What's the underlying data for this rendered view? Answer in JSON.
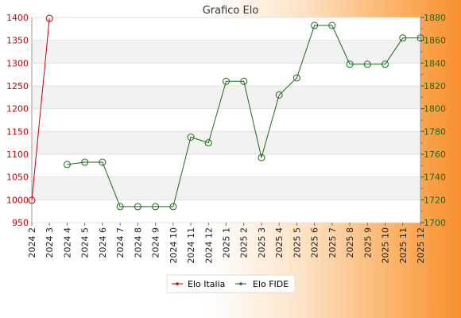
{
  "chart_data": {
    "type": "line",
    "title": "Grafico Elo",
    "categories": [
      "2024 2",
      "2024 3",
      "2024 4",
      "2024 5",
      "2024 6",
      "2024 7",
      "2024 8",
      "2024 9",
      "2024 10",
      "2024 11",
      "2024 12",
      "2025 1",
      "2025 2",
      "2025 3",
      "2025 4",
      "2025 5",
      "2025 6",
      "2025 7",
      "2025 8",
      "2025 9",
      "2025 10",
      "2025 11",
      "2025 12"
    ],
    "y_left": {
      "min": 950,
      "max": 1400,
      "ticks": [
        950,
        1000,
        1050,
        1100,
        1150,
        1200,
        1250,
        1300,
        1350,
        1400
      ]
    },
    "y_right": {
      "min": 1700,
      "max": 1880,
      "ticks": [
        1700,
        1720,
        1740,
        1760,
        1780,
        1800,
        1820,
        1840,
        1860,
        1880
      ]
    },
    "grid": true,
    "legend_position": "bottom",
    "series": [
      {
        "name": "Elo Italia",
        "axis": "left",
        "color": "#cc0000",
        "values": [
          999,
          1398,
          null,
          null,
          null,
          null,
          null,
          null,
          null,
          null,
          null,
          null,
          null,
          null,
          null,
          null,
          null,
          null,
          null,
          null,
          null,
          null,
          null
        ]
      },
      {
        "name": "Elo FIDE",
        "axis": "right",
        "color": "#1a6b1a",
        "values": [
          null,
          null,
          1751,
          1753,
          1753,
          1714,
          1714,
          1714,
          1714,
          1775,
          1770,
          1824,
          1824,
          1757,
          1812,
          1827,
          1873,
          1873,
          1839,
          1839,
          1839,
          1862,
          1862
        ]
      }
    ]
  }
}
